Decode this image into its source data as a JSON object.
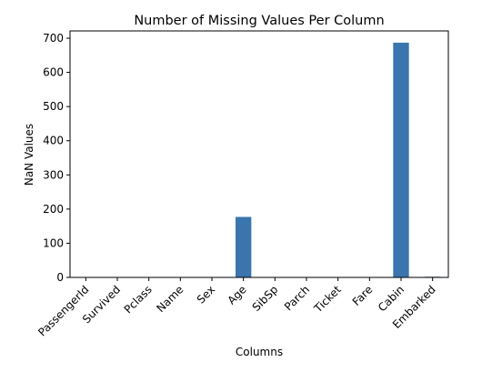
{
  "chart_data": {
    "type": "bar",
    "title": "Number of Missing Values Per Column",
    "x_label": "Columns",
    "y_label": "NaN Values",
    "categories": [
      "PassengerId",
      "Survived",
      "Pclass",
      "Name",
      "Sex",
      "Age",
      "SibSp",
      "Parch",
      "Ticket",
      "Fare",
      "Cabin",
      "Embarked"
    ],
    "values": [
      0,
      0,
      0,
      0,
      0,
      177,
      0,
      0,
      0,
      0,
      687,
      2
    ],
    "color": "#3a75ae",
    "ylim": [
      0,
      721.35
    ],
    "yticks": [
      0,
      100,
      200,
      300,
      400,
      500,
      600,
      700
    ],
    "grid": false
  }
}
